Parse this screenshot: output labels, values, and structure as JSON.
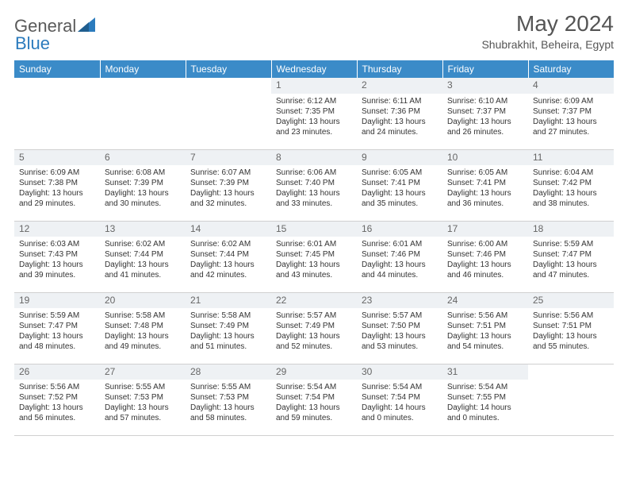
{
  "brand": {
    "part1": "General",
    "part2": "Blue"
  },
  "title": "May 2024",
  "location": "Shubrakhit, Beheira, Egypt",
  "colors": {
    "header_bg": "#3b8bc8",
    "header_text": "#ffffff",
    "daynum_bg": "#eef1f4",
    "border": "#d0d0d0",
    "text": "#333333",
    "logo_gray": "#5a5a5a",
    "logo_blue": "#2b7bbd"
  },
  "weekdays": [
    "Sunday",
    "Monday",
    "Tuesday",
    "Wednesday",
    "Thursday",
    "Friday",
    "Saturday"
  ],
  "weeks": [
    [
      {
        "empty": true
      },
      {
        "empty": true
      },
      {
        "empty": true
      },
      {
        "n": "1",
        "sr": "6:12 AM",
        "ss": "7:35 PM",
        "dl": "13 hours and 23 minutes."
      },
      {
        "n": "2",
        "sr": "6:11 AM",
        "ss": "7:36 PM",
        "dl": "13 hours and 24 minutes."
      },
      {
        "n": "3",
        "sr": "6:10 AM",
        "ss": "7:37 PM",
        "dl": "13 hours and 26 minutes."
      },
      {
        "n": "4",
        "sr": "6:09 AM",
        "ss": "7:37 PM",
        "dl": "13 hours and 27 minutes."
      }
    ],
    [
      {
        "n": "5",
        "sr": "6:09 AM",
        "ss": "7:38 PM",
        "dl": "13 hours and 29 minutes."
      },
      {
        "n": "6",
        "sr": "6:08 AM",
        "ss": "7:39 PM",
        "dl": "13 hours and 30 minutes."
      },
      {
        "n": "7",
        "sr": "6:07 AM",
        "ss": "7:39 PM",
        "dl": "13 hours and 32 minutes."
      },
      {
        "n": "8",
        "sr": "6:06 AM",
        "ss": "7:40 PM",
        "dl": "13 hours and 33 minutes."
      },
      {
        "n": "9",
        "sr": "6:05 AM",
        "ss": "7:41 PM",
        "dl": "13 hours and 35 minutes."
      },
      {
        "n": "10",
        "sr": "6:05 AM",
        "ss": "7:41 PM",
        "dl": "13 hours and 36 minutes."
      },
      {
        "n": "11",
        "sr": "6:04 AM",
        "ss": "7:42 PM",
        "dl": "13 hours and 38 minutes."
      }
    ],
    [
      {
        "n": "12",
        "sr": "6:03 AM",
        "ss": "7:43 PM",
        "dl": "13 hours and 39 minutes."
      },
      {
        "n": "13",
        "sr": "6:02 AM",
        "ss": "7:44 PM",
        "dl": "13 hours and 41 minutes."
      },
      {
        "n": "14",
        "sr": "6:02 AM",
        "ss": "7:44 PM",
        "dl": "13 hours and 42 minutes."
      },
      {
        "n": "15",
        "sr": "6:01 AM",
        "ss": "7:45 PM",
        "dl": "13 hours and 43 minutes."
      },
      {
        "n": "16",
        "sr": "6:01 AM",
        "ss": "7:46 PM",
        "dl": "13 hours and 44 minutes."
      },
      {
        "n": "17",
        "sr": "6:00 AM",
        "ss": "7:46 PM",
        "dl": "13 hours and 46 minutes."
      },
      {
        "n": "18",
        "sr": "5:59 AM",
        "ss": "7:47 PM",
        "dl": "13 hours and 47 minutes."
      }
    ],
    [
      {
        "n": "19",
        "sr": "5:59 AM",
        "ss": "7:47 PM",
        "dl": "13 hours and 48 minutes."
      },
      {
        "n": "20",
        "sr": "5:58 AM",
        "ss": "7:48 PM",
        "dl": "13 hours and 49 minutes."
      },
      {
        "n": "21",
        "sr": "5:58 AM",
        "ss": "7:49 PM",
        "dl": "13 hours and 51 minutes."
      },
      {
        "n": "22",
        "sr": "5:57 AM",
        "ss": "7:49 PM",
        "dl": "13 hours and 52 minutes."
      },
      {
        "n": "23",
        "sr": "5:57 AM",
        "ss": "7:50 PM",
        "dl": "13 hours and 53 minutes."
      },
      {
        "n": "24",
        "sr": "5:56 AM",
        "ss": "7:51 PM",
        "dl": "13 hours and 54 minutes."
      },
      {
        "n": "25",
        "sr": "5:56 AM",
        "ss": "7:51 PM",
        "dl": "13 hours and 55 minutes."
      }
    ],
    [
      {
        "n": "26",
        "sr": "5:56 AM",
        "ss": "7:52 PM",
        "dl": "13 hours and 56 minutes."
      },
      {
        "n": "27",
        "sr": "5:55 AM",
        "ss": "7:53 PM",
        "dl": "13 hours and 57 minutes."
      },
      {
        "n": "28",
        "sr": "5:55 AM",
        "ss": "7:53 PM",
        "dl": "13 hours and 58 minutes."
      },
      {
        "n": "29",
        "sr": "5:54 AM",
        "ss": "7:54 PM",
        "dl": "13 hours and 59 minutes."
      },
      {
        "n": "30",
        "sr": "5:54 AM",
        "ss": "7:54 PM",
        "dl": "14 hours and 0 minutes."
      },
      {
        "n": "31",
        "sr": "5:54 AM",
        "ss": "7:55 PM",
        "dl": "14 hours and 0 minutes."
      },
      {
        "empty": true
      }
    ]
  ]
}
